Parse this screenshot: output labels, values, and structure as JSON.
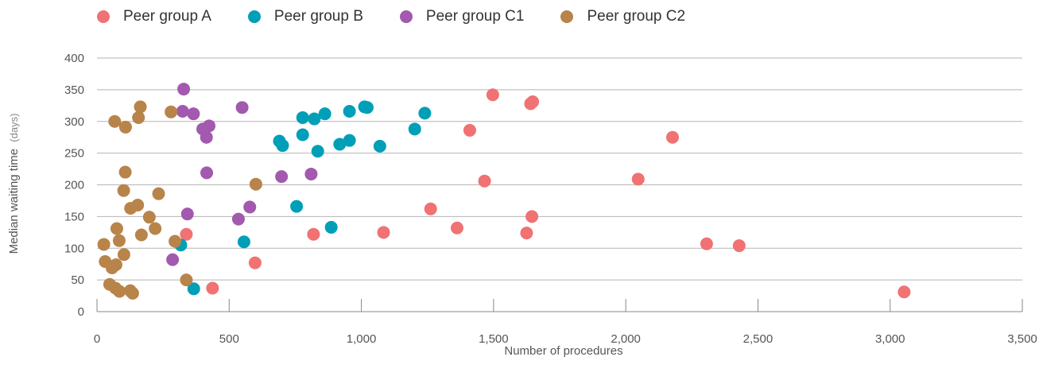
{
  "chart_data": {
    "type": "scatter",
    "xlabel": "Number of procedures",
    "ylabel_main": "Median waiting time",
    "ylabel_unit": "(days)",
    "xlim": [
      0,
      3500
    ],
    "ylim": [
      0,
      400
    ],
    "x_ticks": [
      {
        "v": 0,
        "label": "0"
      },
      {
        "v": 500,
        "label": "500"
      },
      {
        "v": 1000,
        "label": "1,000"
      },
      {
        "v": 1500,
        "label": "1,500"
      },
      {
        "v": 2000,
        "label": "2,000"
      },
      {
        "v": 2500,
        "label": "2,500"
      },
      {
        "v": 3000,
        "label": "3,000"
      },
      {
        "v": 3500,
        "label": "3,500"
      }
    ],
    "y_ticks": [
      {
        "v": 0,
        "label": "0"
      },
      {
        "v": 50,
        "label": "50"
      },
      {
        "v": 100,
        "label": "100"
      },
      {
        "v": 150,
        "label": "150"
      },
      {
        "v": 200,
        "label": "200"
      },
      {
        "v": 250,
        "label": "250"
      },
      {
        "v": 300,
        "label": "300"
      },
      {
        "v": 350,
        "label": "350"
      },
      {
        "v": 400,
        "label": "400"
      }
    ],
    "grid": "horizontal",
    "legend_position": "top-left",
    "series": [
      {
        "name": "Peer group A",
        "color": "#f07272",
        "points": [
          [
            1497,
            342
          ],
          [
            1648,
            331
          ],
          [
            1640,
            328
          ],
          [
            1410,
            286
          ],
          [
            2177,
            275
          ],
          [
            1466,
            206
          ],
          [
            2047,
            209
          ],
          [
            1262,
            162
          ],
          [
            1645,
            150
          ],
          [
            1362,
            132
          ],
          [
            1625,
            124
          ],
          [
            1084,
            125
          ],
          [
            819,
            122
          ],
          [
            338,
            122
          ],
          [
            2306,
            107
          ],
          [
            2429,
            104
          ],
          [
            598,
            77
          ],
          [
            437,
            37
          ],
          [
            3053,
            31
          ]
        ]
      },
      {
        "name": "Peer group B",
        "color": "#009fb8",
        "points": [
          [
            1012,
            323
          ],
          [
            1022,
            322
          ],
          [
            955,
            316
          ],
          [
            1240,
            313
          ],
          [
            862,
            312
          ],
          [
            778,
            306
          ],
          [
            822,
            304
          ],
          [
            1202,
            288
          ],
          [
            778,
            279
          ],
          [
            690,
            269
          ],
          [
            955,
            270
          ],
          [
            918,
            264
          ],
          [
            1070,
            261
          ],
          [
            702,
            262
          ],
          [
            835,
            253
          ],
          [
            755,
            166
          ],
          [
            886,
            133
          ],
          [
            556,
            110
          ],
          [
            317,
            105
          ],
          [
            366,
            36
          ]
        ]
      },
      {
        "name": "Peer group C1",
        "color": "#a259ae",
        "points": [
          [
            328,
            351
          ],
          [
            549,
            322
          ],
          [
            324,
            316
          ],
          [
            365,
            312
          ],
          [
            424,
            293
          ],
          [
            400,
            288
          ],
          [
            414,
            275
          ],
          [
            415,
            219
          ],
          [
            698,
            213
          ],
          [
            810,
            217
          ],
          [
            578,
            165
          ],
          [
            342,
            154
          ],
          [
            535,
            146
          ],
          [
            286,
            82
          ]
        ]
      },
      {
        "name": "Peer group C2",
        "color": "#b8844a",
        "points": [
          [
            164,
            323
          ],
          [
            67,
            300
          ],
          [
            157,
            306
          ],
          [
            280,
            315
          ],
          [
            108,
            291
          ],
          [
            107,
            220
          ],
          [
            601,
            201
          ],
          [
            101,
            191
          ],
          [
            233,
            186
          ],
          [
            154,
            168
          ],
          [
            127,
            163
          ],
          [
            198,
            149
          ],
          [
            75,
            131
          ],
          [
            220,
            131
          ],
          [
            168,
            121
          ],
          [
            84,
            112
          ],
          [
            295,
            111
          ],
          [
            26,
            106
          ],
          [
            102,
            90
          ],
          [
            31,
            79
          ],
          [
            72,
            74
          ],
          [
            57,
            69
          ],
          [
            338,
            50
          ],
          [
            48,
            43
          ],
          [
            70,
            37
          ],
          [
            85,
            32
          ],
          [
            126,
            33
          ],
          [
            135,
            29
          ]
        ]
      }
    ]
  }
}
